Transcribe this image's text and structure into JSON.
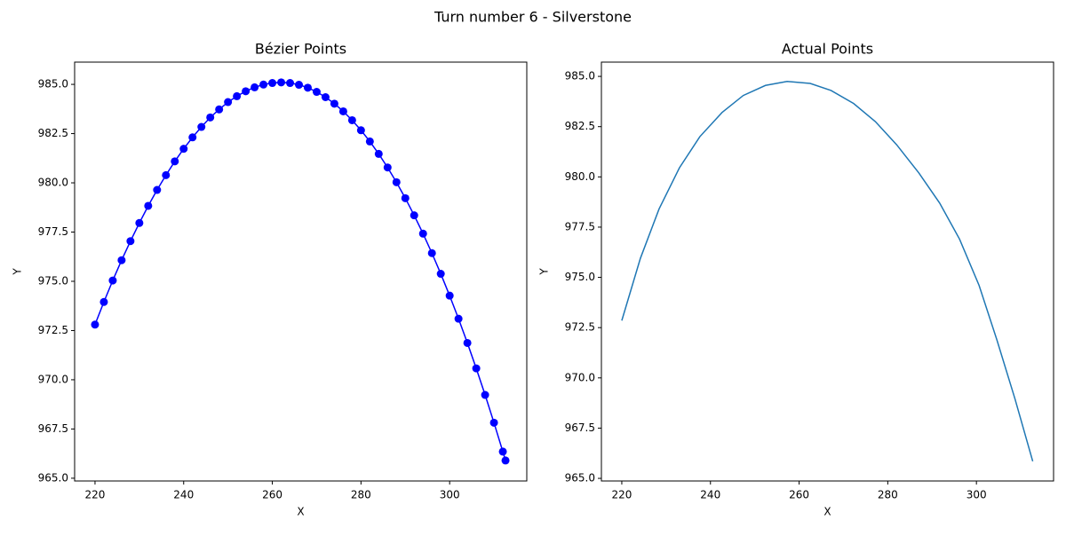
{
  "title": "Turn number 6 - Silverstone",
  "chart_data": [
    {
      "type": "line",
      "marker": "o",
      "title": "Bézier Points",
      "xlabel": "X",
      "ylabel": "Y",
      "color": "#0000ff",
      "x": [
        220,
        222,
        224,
        226,
        228,
        230,
        232,
        234,
        236,
        238,
        240,
        242,
        244,
        246,
        248,
        250,
        252,
        254,
        256,
        258,
        260,
        262,
        264,
        266,
        268,
        270,
        272,
        274,
        276,
        278,
        280,
        282,
        284,
        286,
        288,
        290,
        292,
        294,
        296,
        298,
        300,
        302,
        304,
        306,
        308,
        310,
        312,
        312.6
      ],
      "values": [
        972.8,
        973.95,
        975.04,
        976.07,
        977.04,
        977.96,
        978.83,
        979.64,
        980.39,
        981.09,
        981.73,
        982.31,
        982.84,
        983.32,
        983.73,
        984.1,
        984.4,
        984.65,
        984.85,
        984.99,
        985.07,
        985.1,
        985.07,
        984.98,
        984.83,
        984.62,
        984.35,
        984.02,
        983.63,
        983.18,
        982.67,
        982.1,
        981.47,
        980.78,
        980.03,
        979.22,
        978.35,
        977.42,
        976.43,
        975.38,
        974.27,
        973.1,
        971.87,
        970.58,
        969.23,
        967.82,
        966.35,
        965.9
      ],
      "xlim": [
        215.4,
        317.4
      ],
      "ylim": [
        964.86,
        986.13
      ],
      "xticks": [
        220,
        240,
        260,
        280,
        300
      ],
      "yticks": [
        {
          "value": 965,
          "label": "965.0"
        },
        967.5,
        {
          "value": 970,
          "label": "970.0"
        },
        972.5,
        {
          "value": 975,
          "label": "975.0"
        },
        977.5,
        {
          "value": 980,
          "label": "980.0"
        },
        982.5,
        {
          "value": 985,
          "label": "985.0"
        }
      ]
    },
    {
      "type": "line",
      "title": "Actual Points",
      "xlabel": "X",
      "ylabel": "Y",
      "color": "#1f77b4",
      "x": [
        220,
        224.2,
        228.4,
        233,
        237.6,
        242.6,
        247.4,
        252.4,
        257.3,
        262.5,
        267.2,
        272.3,
        277.2,
        282,
        287,
        291.7,
        296.2,
        300.6,
        304.6,
        308.7,
        312.7
      ],
      "values": [
        972.85,
        975.95,
        978.4,
        980.45,
        982.0,
        983.2,
        984.05,
        984.55,
        984.75,
        984.65,
        984.3,
        983.65,
        982.75,
        981.6,
        980.2,
        978.7,
        976.9,
        974.6,
        971.9,
        968.95,
        965.85
      ],
      "xlim": [
        215.4,
        317.4
      ],
      "ylim": [
        964.87,
        985.71
      ],
      "xticks": [
        220,
        240,
        260,
        280,
        300
      ],
      "yticks": [
        {
          "value": 965,
          "label": "965.0"
        },
        967.5,
        {
          "value": 970,
          "label": "970.0"
        },
        972.5,
        {
          "value": 975,
          "label": "975.0"
        },
        977.5,
        {
          "value": 980,
          "label": "980.0"
        },
        982.5,
        {
          "value": 985,
          "label": "985.0"
        }
      ]
    }
  ]
}
